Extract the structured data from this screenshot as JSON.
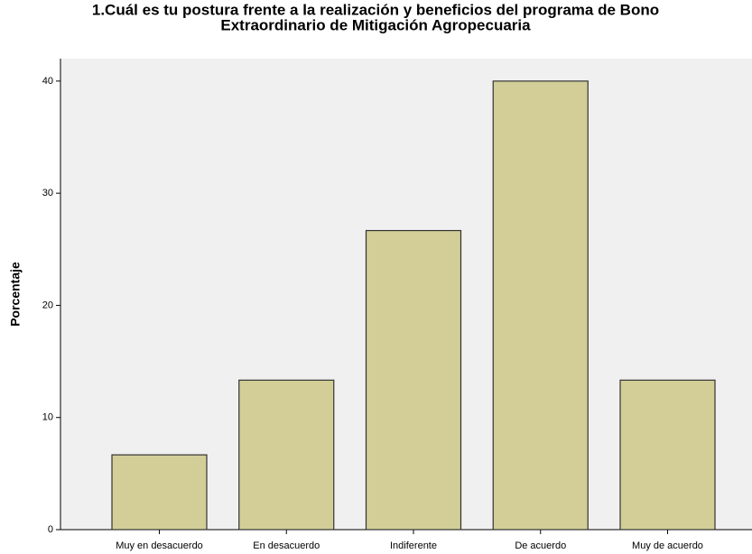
{
  "chart_data": {
    "type": "bar",
    "title": [
      "1.Cuál es tu postura frente a la realización y beneficios del programa de Bono",
      "Extraordinario de Mitigación Agropecuaria"
    ],
    "ylabel": "Porcentaje",
    "categories": [
      "Muy en desacuerdo",
      "En desacuerdo",
      "Indiferente",
      "De acuerdo",
      "Muy de acuerdo"
    ],
    "values": [
      6.67,
      13.33,
      26.67,
      40,
      13.33
    ],
    "color": "#d3ce97",
    "ylim": [
      0,
      42
    ],
    "yticks": [
      0,
      10,
      20,
      30,
      40
    ],
    "grid": false
  }
}
